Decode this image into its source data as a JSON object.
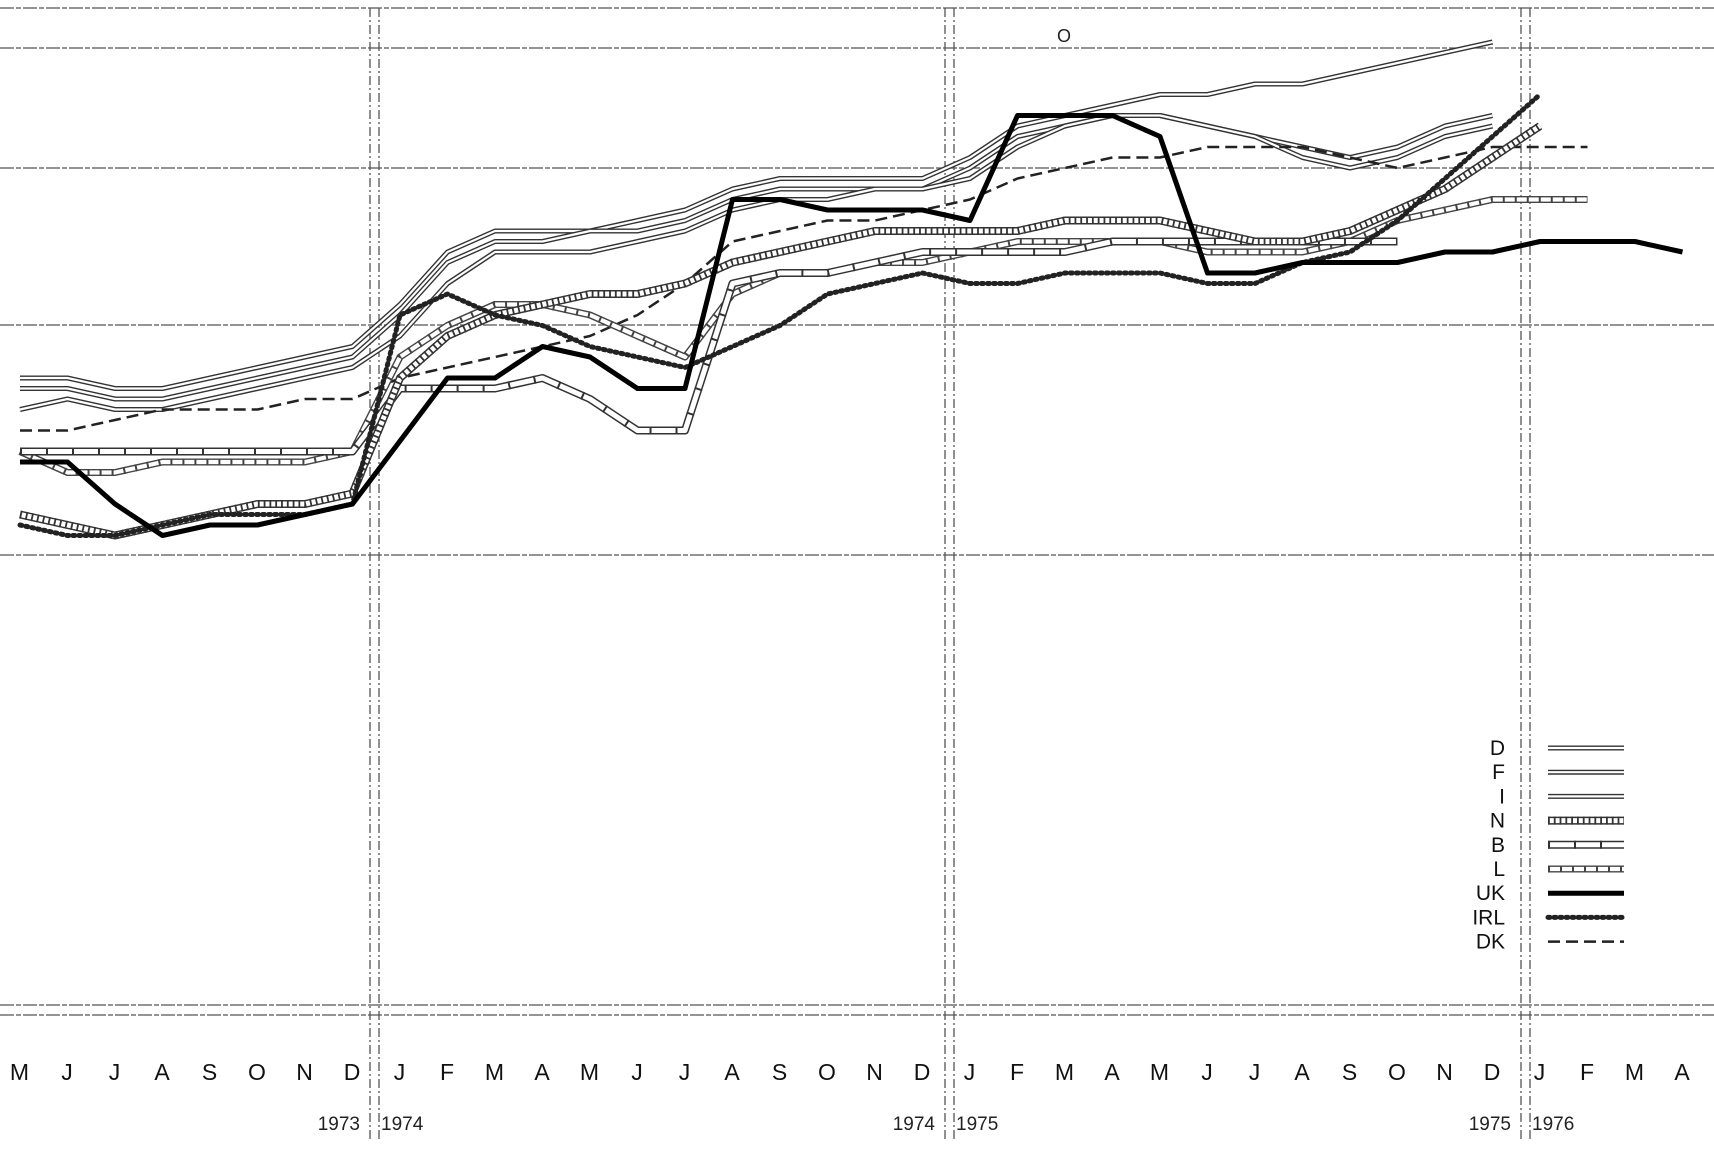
{
  "chart_data": {
    "type": "line",
    "title": "",
    "xlabel": "",
    "ylabel": "",
    "grid": true,
    "legend_position": "bottom-right",
    "month_labels": [
      "M",
      "J",
      "J",
      "A",
      "S",
      "O",
      "N",
      "D",
      "J",
      "F",
      "M",
      "A",
      "M",
      "J",
      "J",
      "A",
      "S",
      "O",
      "N",
      "D",
      "J",
      "F",
      "M",
      "A",
      "M",
      "J",
      "J",
      "A",
      "S",
      "O",
      "N",
      "D",
      "J",
      "F",
      "M",
      "A"
    ],
    "year_labels": [
      "1973",
      "1974",
      "1974",
      "1975",
      "1975",
      "1976"
    ],
    "x": [
      "1973-05",
      "1973-06",
      "1973-07",
      "1973-08",
      "1973-09",
      "1973-10",
      "1973-11",
      "1973-12",
      "1974-01",
      "1974-02",
      "1974-03",
      "1974-04",
      "1974-05",
      "1974-06",
      "1974-07",
      "1974-08",
      "1974-09",
      "1974-10",
      "1974-11",
      "1974-12",
      "1975-01",
      "1975-02",
      "1975-03",
      "1975-04",
      "1975-05",
      "1975-06",
      "1975-07",
      "1975-08",
      "1975-09",
      "1975-10",
      "1975-11",
      "1975-12",
      "1976-01",
      "1976-02",
      "1976-03",
      "1976-04"
    ],
    "ylim": [
      0,
      100
    ],
    "top_mark": "O",
    "series": [
      {
        "name": "D",
        "style": "double",
        "values": [
          64,
          64,
          63,
          63,
          64,
          65,
          66,
          67,
          71,
          76,
          78,
          78,
          78,
          79,
          80,
          82,
          83,
          83,
          83,
          83,
          85,
          88,
          89,
          90,
          91,
          91,
          92,
          92,
          93,
          94,
          95,
          96,
          null,
          null,
          null,
          null
        ]
      },
      {
        "name": "F",
        "style": "double",
        "values": [
          63,
          63,
          62,
          62,
          63,
          64,
          65,
          66,
          70,
          75,
          77,
          77,
          78,
          78,
          79,
          81,
          82,
          82,
          82,
          82,
          84,
          87,
          88,
          89,
          89,
          88,
          87,
          86,
          85,
          86,
          88,
          89,
          null,
          null,
          null,
          null
        ]
      },
      {
        "name": "I",
        "style": "double",
        "values": [
          61,
          62,
          61,
          61,
          62,
          63,
          64,
          65,
          68,
          73,
          76,
          76,
          76,
          77,
          78,
          80,
          81,
          81,
          82,
          82,
          83,
          86,
          88,
          89,
          89,
          88,
          87,
          85,
          84,
          85,
          87,
          88,
          null,
          null,
          null,
          null
        ]
      },
      {
        "name": "N",
        "style": "chain",
        "values": [
          51,
          50,
          49,
          50,
          51,
          52,
          52,
          53,
          64,
          68,
          70,
          71,
          72,
          72,
          73,
          75,
          76,
          77,
          78,
          78,
          78,
          78,
          79,
          79,
          79,
          78,
          77,
          77,
          78,
          80,
          82,
          85,
          88,
          null,
          null,
          null
        ]
      },
      {
        "name": "B",
        "style": "block",
        "values": [
          57,
          57,
          57,
          57,
          57,
          57,
          57,
          57,
          63,
          63,
          63,
          64,
          62,
          59,
          59,
          73,
          74,
          74,
          75,
          76,
          76,
          76,
          76,
          77,
          77,
          77,
          77,
          77,
          77,
          77,
          null,
          null,
          null,
          null,
          null,
          null
        ]
      },
      {
        "name": "L",
        "style": "link",
        "values": [
          57,
          55,
          55,
          56,
          56,
          56,
          56,
          57,
          66,
          69,
          71,
          71,
          70,
          68,
          66,
          72,
          74,
          74,
          75,
          75,
          76,
          77,
          77,
          77,
          77,
          76,
          76,
          76,
          77,
          79,
          80,
          81,
          81,
          81,
          null,
          null
        ]
      },
      {
        "name": "UK",
        "style": "thick",
        "values": [
          56,
          56,
          52,
          49,
          50,
          50,
          51,
          52,
          58,
          64,
          64,
          67,
          66,
          63,
          63,
          81,
          81,
          80,
          80,
          80,
          79,
          89,
          89,
          89,
          87,
          74,
          74,
          75,
          75,
          75,
          76,
          76,
          77,
          77,
          77,
          76
        ]
      },
      {
        "name": "IRL",
        "style": "dotted",
        "values": [
          50,
          49,
          49,
          50,
          51,
          51,
          51,
          52,
          70,
          72,
          70,
          69,
          67,
          66,
          65,
          67,
          69,
          72,
          73,
          74,
          73,
          73,
          74,
          74,
          74,
          73,
          73,
          75,
          76,
          79,
          83,
          87,
          91,
          null,
          null,
          null
        ]
      },
      {
        "name": "DK",
        "style": "dashed",
        "values": [
          59,
          59,
          60,
          61,
          61,
          61,
          62,
          62,
          64,
          65,
          66,
          67,
          68,
          70,
          73,
          77,
          78,
          79,
          79,
          80,
          81,
          83,
          84,
          85,
          85,
          86,
          86,
          86,
          85,
          84,
          85,
          86,
          86,
          86,
          null,
          null
        ]
      }
    ]
  }
}
